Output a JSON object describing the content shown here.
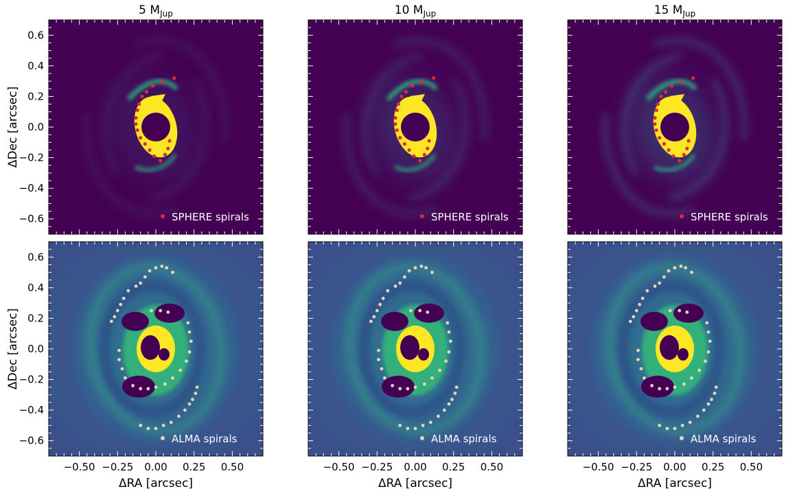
{
  "chart_data": {
    "type": "scatter",
    "description_text": {
      "xlabel": "ΔRA [arcsec]",
      "ylabel": "ΔDec [arcsec]"
    },
    "xlim": [
      -0.7,
      0.7
    ],
    "ylim": [
      -0.7,
      0.7
    ],
    "xticks": [
      -0.5,
      -0.25,
      0.0,
      0.25,
      0.5
    ],
    "xtick_labels": [
      "−0.50",
      "−0.25",
      "0.00",
      "0.25",
      "0.50"
    ],
    "yticks": [
      0.6,
      0.4,
      0.2,
      0.0,
      -0.2,
      -0.4,
      -0.6
    ],
    "ytick_labels": [
      "0.6",
      "0.4",
      "0.2",
      "0.0",
      "−0.2",
      "−0.4",
      "−0.6"
    ],
    "columns": [
      {
        "title_main": "5 M",
        "title_sub": "Jup"
      },
      {
        "title_main": "10 M",
        "title_sub": "Jup"
      },
      {
        "title_main": "15 M",
        "title_sub": "Jup"
      }
    ],
    "rows": [
      {
        "legend": "SPHERE spirals",
        "marker_color": "#e0283a",
        "background": "#440154",
        "kind": "sphere"
      },
      {
        "legend": "ALMA spirals",
        "marker_color": "#e8d4b8",
        "background": "#3a5a8f",
        "kind": "alma"
      }
    ],
    "sphere_spirals": {
      "x": [
        0.12,
        0.04,
        -0.02,
        -0.06,
        -0.09,
        -0.11,
        -0.12,
        -0.13,
        -0.13,
        -0.12,
        -0.1,
        -0.07,
        -0.04,
        -0.01,
        0.03,
        0.06,
        0.08,
        0.09
      ],
      "y": [
        0.32,
        0.29,
        0.27,
        0.23,
        0.2,
        0.15,
        0.11,
        0.06,
        0.02,
        -0.02,
        -0.07,
        -0.11,
        -0.15,
        -0.19,
        -0.22,
        -0.18,
        -0.14,
        -0.09
      ]
    },
    "alma_spirals": {
      "x": [
        -0.29,
        -0.27,
        -0.25,
        -0.23,
        -0.21,
        -0.18,
        -0.13,
        -0.1,
        -0.07,
        -0.04,
        0.0,
        0.04,
        0.07,
        0.11,
        -0.24,
        -0.24,
        -0.22,
        -0.2,
        -0.15,
        -0.1,
        -0.05,
        0.0,
        0.05,
        0.1,
        0.15,
        0.19,
        0.22,
        0.24,
        0.26,
        0.27,
        -0.1,
        -0.05,
        0.0,
        0.06,
        0.11,
        0.16,
        0.2,
        0.22,
        0.23,
        0.22,
        0.21,
        -0.03,
        0.03,
        0.08
      ],
      "y": [
        0.18,
        0.21,
        0.25,
        0.29,
        0.33,
        0.38,
        0.41,
        0.43,
        0.47,
        0.51,
        0.53,
        0.54,
        0.53,
        0.5,
        -0.01,
        -0.07,
        -0.13,
        -0.19,
        -0.24,
        -0.5,
        -0.52,
        -0.52,
        -0.5,
        -0.48,
        -0.44,
        -0.4,
        -0.36,
        -0.33,
        -0.29,
        -0.25,
        -0.26,
        -0.26,
        -0.25,
        -0.23,
        -0.19,
        -0.14,
        -0.08,
        -0.02,
        0.05,
        0.11,
        0.17,
        0.25,
        0.25,
        0.24
      ]
    }
  }
}
